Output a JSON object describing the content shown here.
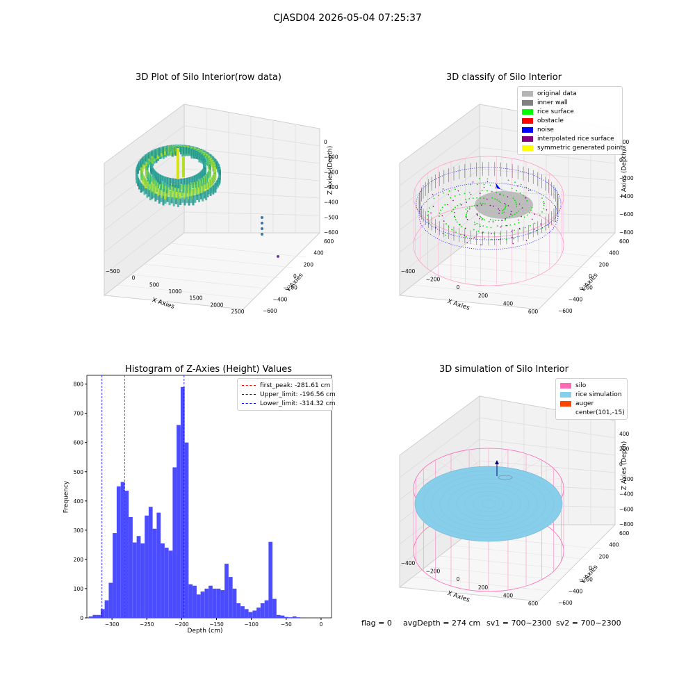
{
  "figure": {
    "suptitle": "CJASD04 2026-05-04 07:25:37"
  },
  "chart_data": [
    {
      "type": "scatter",
      "title": "3D Plot of Silo Interior(row data)",
      "xlabel": "X Axies",
      "ylabel": "Y Axies",
      "zlabel": "Z Axies (Depth)",
      "x_ticks": [
        "−500",
        "0",
        "500",
        "1000",
        "1500",
        "2000",
        "2500"
      ],
      "y_ticks": [
        "−600",
        "−400",
        "−200",
        "0",
        "200",
        "400",
        "600"
      ],
      "z_ticks": [
        "−600",
        "−500",
        "−400",
        "−300",
        "−200",
        "−100",
        "0"
      ],
      "grid": true,
      "colormap": "viridis"
    },
    {
      "type": "scatter",
      "title": "3D classify of Silo Interior",
      "xlabel": "X Axies",
      "ylabel": "Y Axies",
      "zlabel": "Z Axies (Depth)",
      "x_ticks": [
        "−400",
        "−200",
        "0",
        "200",
        "400",
        "600"
      ],
      "y_ticks": [
        "−600",
        "−400",
        "−200",
        "0",
        "200",
        "400",
        "600"
      ],
      "z_ticks": [
        "−800",
        "−600",
        "−400",
        "−200",
        "0",
        "200"
      ],
      "grid": true,
      "legend_position": "top-right",
      "legend": [
        {
          "label": "original data",
          "color": "#b4b4b4"
        },
        {
          "label": "inner wall",
          "color": "#808080"
        },
        {
          "label": "rice surface",
          "color": "#00ff00"
        },
        {
          "label": "obstacle",
          "color": "#ff0000"
        },
        {
          "label": "noise",
          "color": "#0000ff"
        },
        {
          "label": "interpolated rice surface",
          "color": "#800080"
        },
        {
          "label": "symmetric generated points",
          "color": "#ffff00"
        }
      ]
    },
    {
      "type": "bar",
      "title": "Histogram of Z-Axies (Height) Values",
      "xlabel": "Depth (cm)",
      "ylabel": "Frequency",
      "xlim": [
        -336,
        15
      ],
      "ylim": [
        0,
        830
      ],
      "x_ticks": [
        -300,
        -250,
        -200,
        -150,
        -100,
        -50,
        0
      ],
      "y_ticks": [
        0,
        100,
        200,
        300,
        400,
        500,
        600,
        700,
        800
      ],
      "bar_color": "#4b4bff",
      "bins": [
        {
          "x": -330.5,
          "count": 5
        },
        {
          "x": -324.8,
          "count": 10
        },
        {
          "x": -319.0,
          "count": 10
        },
        {
          "x": -313.3,
          "count": 30
        },
        {
          "x": -307.6,
          "count": 60
        },
        {
          "x": -301.8,
          "count": 120
        },
        {
          "x": -296.1,
          "count": 290
        },
        {
          "x": -290.4,
          "count": 450
        },
        {
          "x": -284.6,
          "count": 465
        },
        {
          "x": -278.9,
          "count": 435
        },
        {
          "x": -273.2,
          "count": 345
        },
        {
          "x": -267.4,
          "count": 258
        },
        {
          "x": -261.7,
          "count": 280
        },
        {
          "x": -256.0,
          "count": 255
        },
        {
          "x": -250.2,
          "count": 350
        },
        {
          "x": -244.5,
          "count": 380
        },
        {
          "x": -238.8,
          "count": 305
        },
        {
          "x": -233.0,
          "count": 360
        },
        {
          "x": -227.3,
          "count": 255
        },
        {
          "x": -221.6,
          "count": 240
        },
        {
          "x": -215.8,
          "count": 230
        },
        {
          "x": -210.1,
          "count": 515
        },
        {
          "x": -204.4,
          "count": 660
        },
        {
          "x": -198.6,
          "count": 790
        },
        {
          "x": -192.9,
          "count": 600
        },
        {
          "x": -187.2,
          "count": 115
        },
        {
          "x": -181.4,
          "count": 110
        },
        {
          "x": -175.7,
          "count": 80
        },
        {
          "x": -170.0,
          "count": 90
        },
        {
          "x": -164.2,
          "count": 100
        },
        {
          "x": -158.5,
          "count": 110
        },
        {
          "x": -152.8,
          "count": 100
        },
        {
          "x": -147.0,
          "count": 100
        },
        {
          "x": -141.3,
          "count": 95
        },
        {
          "x": -135.6,
          "count": 185
        },
        {
          "x": -129.8,
          "count": 140
        },
        {
          "x": -124.1,
          "count": 100
        },
        {
          "x": -118.4,
          "count": 50
        },
        {
          "x": -112.6,
          "count": 40
        },
        {
          "x": -106.9,
          "count": 30
        },
        {
          "x": -101.2,
          "count": 20
        },
        {
          "x": -95.4,
          "count": 25
        },
        {
          "x": -89.7,
          "count": 35
        },
        {
          "x": -84.0,
          "count": 50
        },
        {
          "x": -78.2,
          "count": 60
        },
        {
          "x": -72.5,
          "count": 260
        },
        {
          "x": -66.8,
          "count": 65
        },
        {
          "x": -61.0,
          "count": 10
        },
        {
          "x": -55.3,
          "count": 8
        },
        {
          "x": -49.6,
          "count": 3
        },
        {
          "x": -43.8,
          "count": 2
        },
        {
          "x": -38.1,
          "count": 5
        },
        {
          "x": -32.4,
          "count": 2
        }
      ],
      "bin_width": 5.7,
      "vlines": [
        {
          "label": "first_peak: -281.61 cm",
          "x": -281.61,
          "color": "#ff0000"
        },
        {
          "label": "Upper_limit: -196.56 cm",
          "x": -196.56,
          "color": "#0000ff"
        },
        {
          "label": "Lower_limit: -314.32 cm",
          "x": -314.32,
          "color": "#0000ff"
        }
      ],
      "legend_position": "top-right"
    },
    {
      "type": "scatter",
      "title": "3D simulation of Silo Interior",
      "xlabel": "X Axies",
      "ylabel": "Y Axies",
      "zlabel": "Z Axies (Depth)",
      "x_ticks": [
        "−400",
        "−200",
        "0",
        "200",
        "400",
        "600"
      ],
      "y_ticks": [
        "−600",
        "−400",
        "−200",
        "0",
        "200",
        "400",
        "600"
      ],
      "z_ticks": [
        "−800",
        "−600",
        "−400",
        "−200",
        "0",
        "200",
        "400"
      ],
      "grid": true,
      "legend_position": "top-right",
      "legend": [
        {
          "label": "silo",
          "color": "#ff69b4"
        },
        {
          "label": "rice simulation",
          "color": "#87ceeb"
        },
        {
          "label": "auger",
          "color": "#ff4500"
        },
        {
          "label": "center(101,-15)",
          "color": ""
        }
      ]
    }
  ],
  "status": {
    "flag": "flag = 0",
    "avg": "avgDepth = 274 cm",
    "sv1": "sv1 = 700~2300",
    "sv2": "sv2 = 700~2300"
  }
}
